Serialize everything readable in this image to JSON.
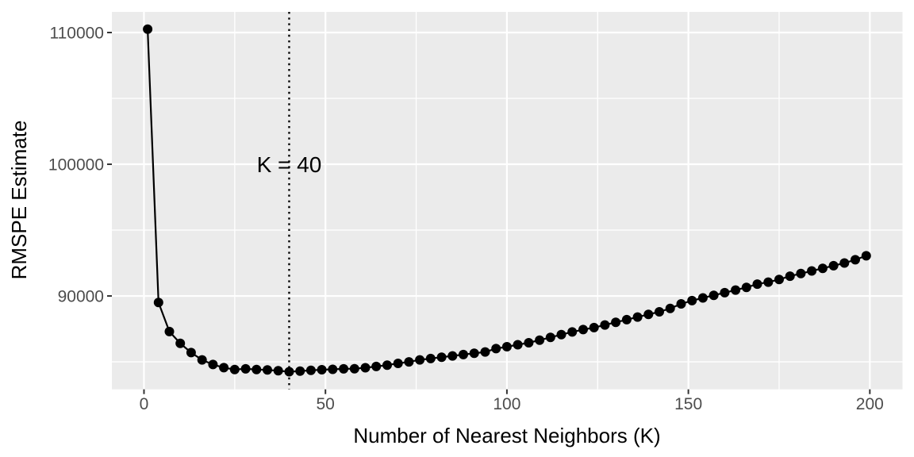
{
  "chart_data": {
    "type": "line",
    "title": "",
    "xlabel": "Number of Nearest Neighbors (K)",
    "ylabel": "RMSPE Estimate",
    "x": [
      1,
      4,
      7,
      10,
      13,
      16,
      19,
      22,
      25,
      28,
      31,
      34,
      37,
      40,
      43,
      46,
      49,
      52,
      55,
      58,
      61,
      64,
      67,
      70,
      73,
      76,
      79,
      82,
      85,
      88,
      91,
      94,
      97,
      100,
      103,
      106,
      109,
      112,
      115,
      118,
      121,
      124,
      127,
      130,
      133,
      136,
      139,
      142,
      145,
      148,
      151,
      154,
      157,
      160,
      163,
      166,
      169,
      172,
      175,
      178,
      181,
      184,
      187,
      190,
      193,
      196,
      199
    ],
    "y": [
      110250,
      89500,
      87300,
      86400,
      85700,
      85150,
      84800,
      84560,
      84420,
      84470,
      84420,
      84380,
      84330,
      84250,
      84300,
      84350,
      84400,
      84430,
      84470,
      84480,
      84550,
      84650,
      84750,
      84880,
      85000,
      85150,
      85250,
      85350,
      85450,
      85550,
      85650,
      85750,
      86000,
      86150,
      86300,
      86450,
      86650,
      86850,
      87070,
      87270,
      87450,
      87600,
      87800,
      88000,
      88200,
      88400,
      88600,
      88800,
      89050,
      89400,
      89650,
      89850,
      90050,
      90250,
      90450,
      90650,
      90900,
      91050,
      91250,
      91500,
      91700,
      91900,
      92100,
      92300,
      92500,
      92750,
      93050
    ],
    "x_ticks": [
      0,
      50,
      100,
      150,
      200
    ],
    "x_minor_ticks": [
      25,
      75,
      125,
      175
    ],
    "y_ticks": [
      90000,
      100000,
      110000
    ],
    "y_minor_ticks": [
      85000,
      95000,
      105000
    ],
    "xlim": [
      -8.85,
      209.0
    ],
    "ylim": [
      82913,
      111566
    ],
    "grid": true,
    "legend": "none",
    "vline": {
      "x": 40,
      "label": "K = 40",
      "linetype": "dotted",
      "color": "#000000"
    },
    "marker_radius": 6,
    "colors": {
      "panel_bg": "#EBEBEB",
      "grid": "#FFFFFF",
      "line": "#000000",
      "point": "#000000",
      "tick_mark": "#333333",
      "tick_label": "#4D4D4D",
      "axis_title": "#000000",
      "annotation": "#000000"
    }
  }
}
